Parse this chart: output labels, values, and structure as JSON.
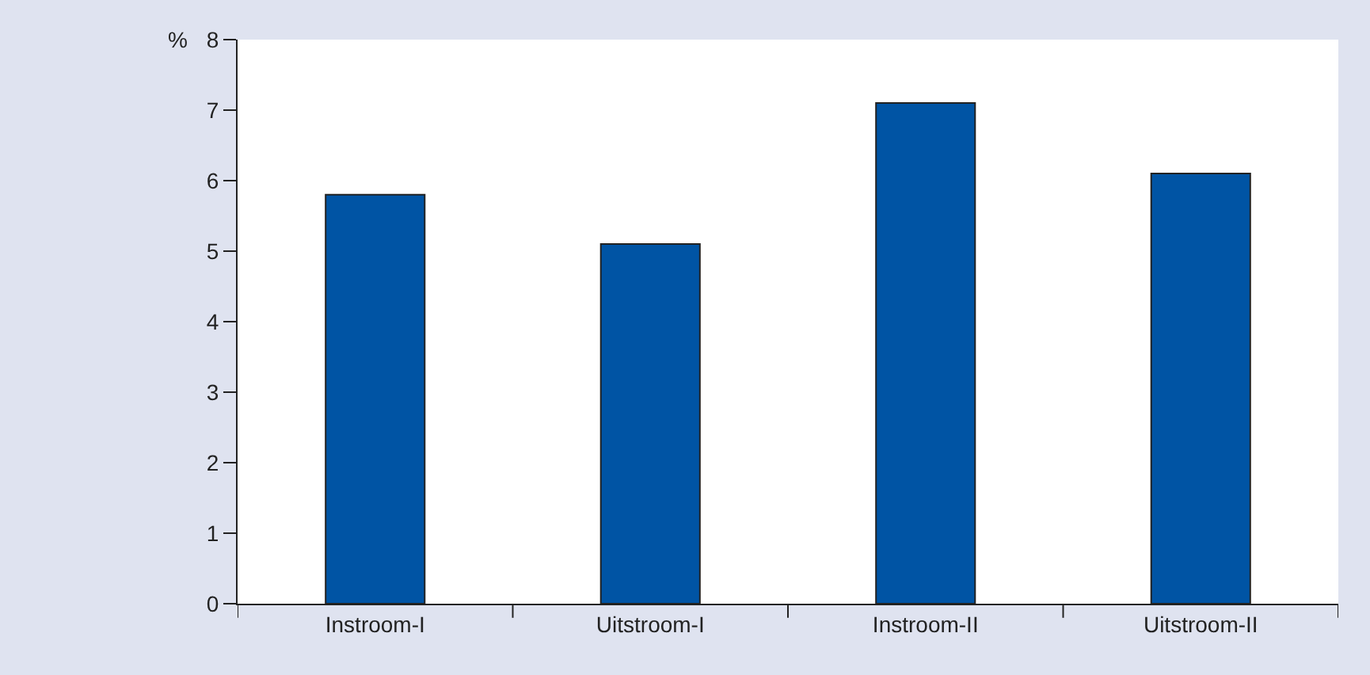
{
  "chart_data": {
    "type": "bar",
    "ylabel": "%",
    "categories": [
      "Instroom-I",
      "Uitstroom-I",
      "Instroom-II",
      "Uitstroom-II"
    ],
    "values": [
      5.8,
      5.1,
      7.1,
      6.1
    ],
    "color": "#0054a4",
    "ylim": [
      0,
      8
    ],
    "yticks": [
      0,
      1,
      2,
      3,
      4,
      5,
      6,
      7,
      8
    ]
  }
}
